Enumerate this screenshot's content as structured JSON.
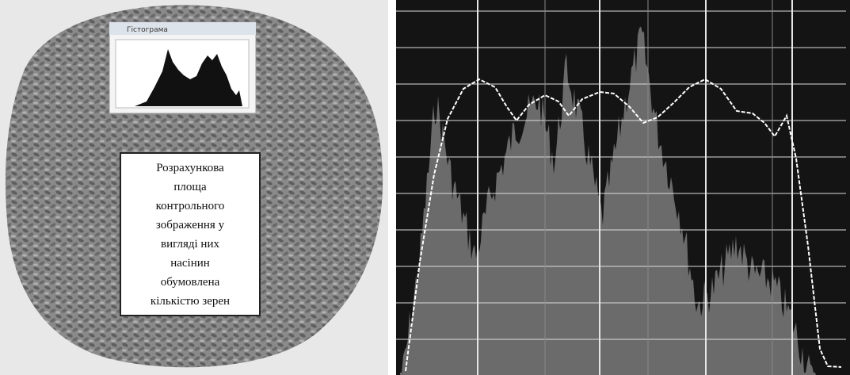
{
  "inset": {
    "title": "Гістограма"
  },
  "label": {
    "lines": [
      "Розрахункова",
      "площа",
      "контрольного",
      "зображення у",
      "вигляді них",
      "насінин",
      "обумовлена",
      "кількістю зерен"
    ]
  }
}
